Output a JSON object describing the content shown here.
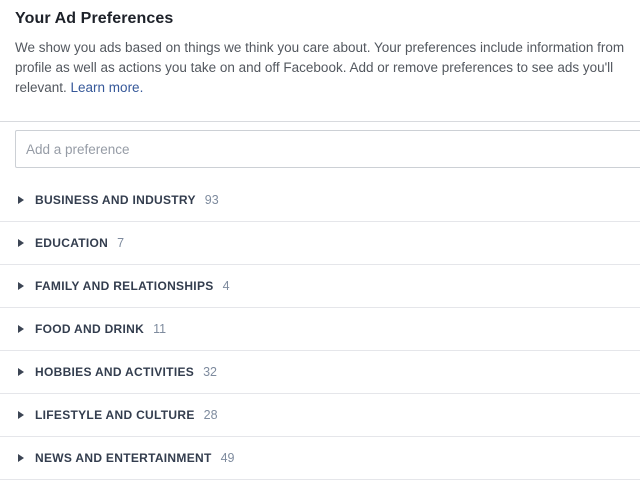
{
  "header": {
    "title": "Your Ad Preferences",
    "description_line1": "We show you ads based on things we think you care about. Your preferences include information from",
    "description_line2": "profile as well as actions you take on and off Facebook. Add or remove preferences to see ads you'll",
    "description_line3": "relevant. ",
    "learn_more_label": "Learn more."
  },
  "search": {
    "placeholder": "Add a preference"
  },
  "categories": [
    {
      "label": "BUSINESS AND INDUSTRY",
      "count": "93"
    },
    {
      "label": "EDUCATION",
      "count": "7"
    },
    {
      "label": "FAMILY AND RELATIONSHIPS",
      "count": "4"
    },
    {
      "label": "FOOD AND DRINK",
      "count": "11"
    },
    {
      "label": "HOBBIES AND ACTIVITIES",
      "count": "32"
    },
    {
      "label": "LIFESTYLE AND CULTURE",
      "count": "28"
    },
    {
      "label": "NEWS AND ENTERTAINMENT",
      "count": "49"
    }
  ],
  "colors": {
    "title_text": "#1d2129",
    "body_text": "#53585f",
    "link_blue": "#365899",
    "category_label": "#333d4e",
    "category_count": "#7e8b9e",
    "divider": "#e5e6ea",
    "input_border": "#ccd0d5",
    "placeholder": "#969ca6",
    "background": "#ffffff"
  }
}
